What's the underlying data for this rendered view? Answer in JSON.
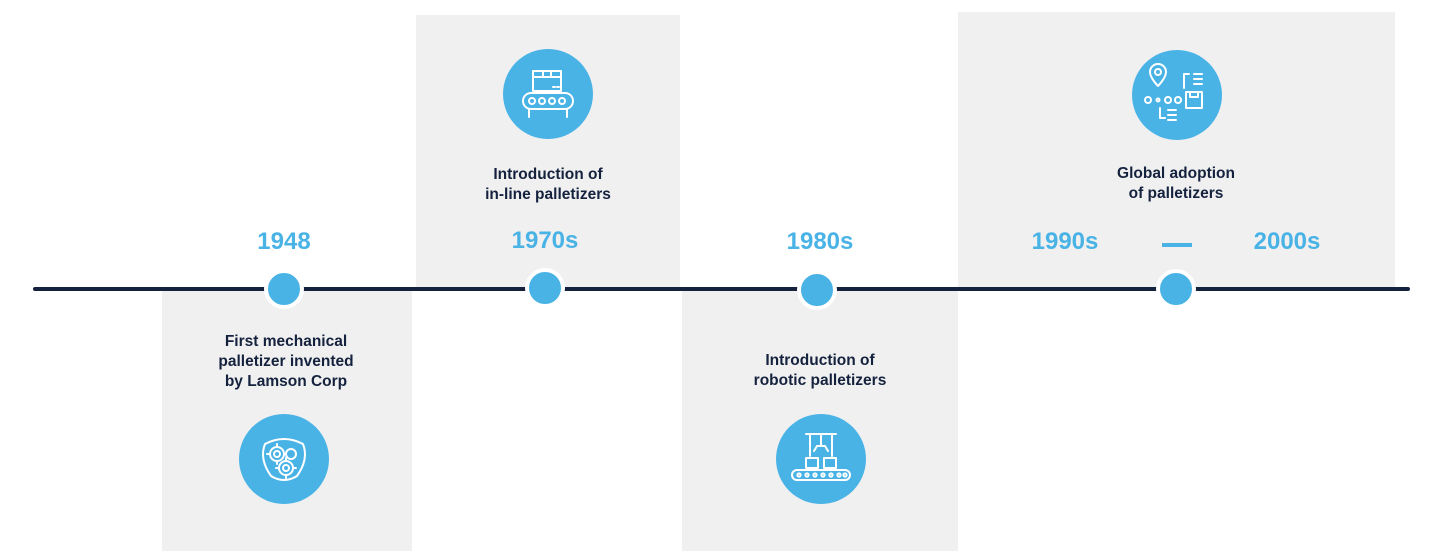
{
  "milestones": [
    {
      "year": "1948",
      "lines": [
        "First mechanical",
        "palletizer invented",
        "by Lamson Corp"
      ],
      "icon": "gears-icon"
    },
    {
      "year": "1970s",
      "lines": [
        "Introduction of",
        "in-line palletizers"
      ],
      "icon": "conveyor-icon"
    },
    {
      "year": "1980s",
      "lines": [
        "Introduction of",
        "robotic palletizers"
      ],
      "icon": "robotic-arm-icon"
    },
    {
      "year_start": "1990s",
      "year_end": "2000s",
      "lines": [
        "Global adoption",
        "of palletizers"
      ],
      "icon": "global-logistics-icon"
    }
  ],
  "colors": {
    "accent": "#4ab3e6",
    "text": "#15223d",
    "panel": "#f0f0f1",
    "axis": "#15223d"
  }
}
